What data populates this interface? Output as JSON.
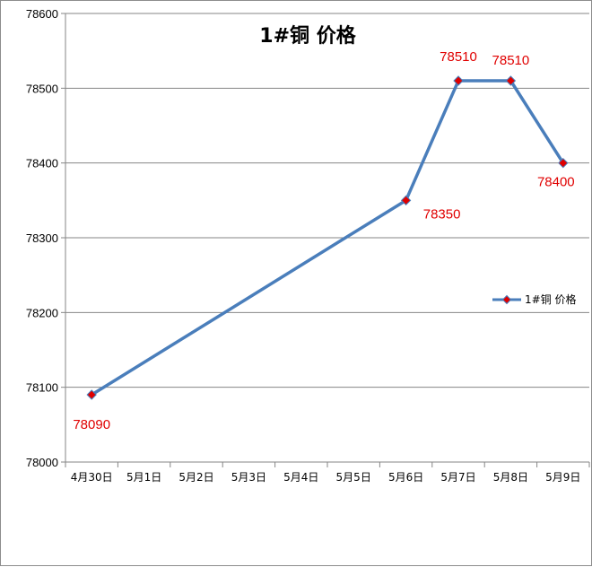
{
  "chart_data": {
    "type": "line",
    "title": "1#铜 价格",
    "categories": [
      "4月30日",
      "5月1日",
      "5月2日",
      "5月3日",
      "5月4日",
      "5月5日",
      "5月6日",
      "5月7日",
      "5月8日",
      "5月9日"
    ],
    "series": [
      {
        "name": "1#铜 价格",
        "points": [
          {
            "category": "4月30日",
            "value": 78090,
            "label": "78090"
          },
          {
            "category": "5月6日",
            "value": 78350,
            "label": "78350"
          },
          {
            "category": "5月7日",
            "value": 78510,
            "label": "78510"
          },
          {
            "category": "5月8日",
            "value": 78510,
            "label": "78510"
          },
          {
            "category": "5月9日",
            "value": 78400,
            "label": "78400"
          }
        ]
      }
    ],
    "ylim": [
      78000,
      78600
    ],
    "yticks": [
      "78000",
      "78100",
      "78200",
      "78300",
      "78400",
      "78500",
      "78600"
    ],
    "grid": true,
    "legend_position": "right",
    "colors": {
      "line": "#4a7ebb",
      "marker": "#e00000",
      "data_label": "#e00000",
      "grid": "#868686"
    }
  }
}
